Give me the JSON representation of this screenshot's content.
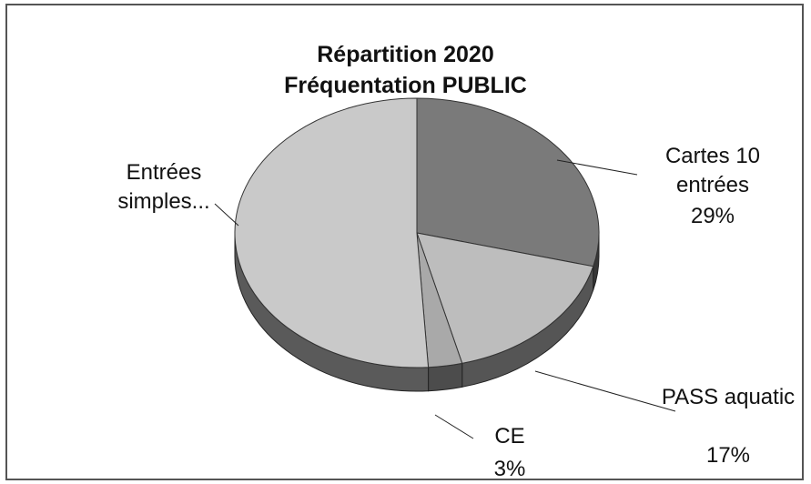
{
  "chart_data": {
    "type": "pie",
    "title": "Répartition 2020",
    "subtitle": "Fréquentation PUBLIC",
    "categories": [
      "Cartes 10 entrées",
      "PASS aquatic",
      "CE",
      "Entrées simples..."
    ],
    "values": [
      29,
      17,
      3,
      51
    ],
    "value_labels": [
      "29%",
      "17%",
      "3%",
      null
    ],
    "colors": [
      "#7a7a7a",
      "#bdbdbd",
      "#a9a9a9",
      "#c9c9c9"
    ]
  }
}
